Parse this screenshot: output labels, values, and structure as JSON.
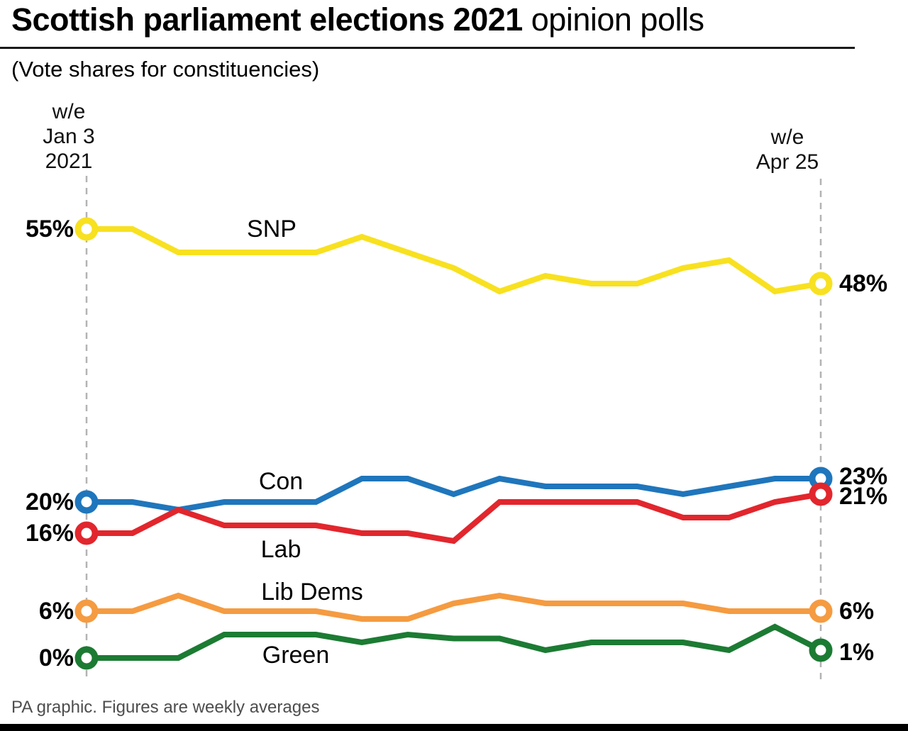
{
  "page": {
    "title_bold": "Scottish parliament elections 2021",
    "title_light": " opinion polls",
    "subtitle": "(Vote shares for constituencies)",
    "footer": "PA graphic. Figures are weekly averages"
  },
  "chart_data": {
    "type": "line",
    "title": "Scottish parliament elections 2021 opinion polls",
    "subtitle": "(Vote shares for constituencies)",
    "source_note": "PA graphic. Figures are weekly averages",
    "x_axis": {
      "description": "17 weekly poll averages from w/e Jan 3 2021 to w/e Apr 25",
      "start_label_lines": [
        "w/e",
        "Jan 3",
        "2021"
      ],
      "end_label_lines": [
        "w/e",
        "Apr 25"
      ],
      "gridlines": "dashed vertical line at first and last week only"
    },
    "y_axis": {
      "unit": "%",
      "range_shown": [
        0,
        55
      ],
      "tick_labels_left": [
        "55%",
        "20%",
        "16%",
        "6%",
        "0%"
      ],
      "tick_labels_right": [
        "48%",
        "23%",
        "21%",
        "6%",
        "1%"
      ]
    },
    "legend_position": "inline labels next to each line",
    "series": [
      {
        "name": "SNP",
        "color": "#F8E120",
        "start_label": "55%",
        "end_label": "48%",
        "values": [
          55,
          55,
          52,
          52,
          52,
          52,
          54,
          52,
          50,
          47,
          49,
          48,
          48,
          50,
          51,
          47,
          48
        ]
      },
      {
        "name": "Con",
        "color": "#1F76BC",
        "start_label": "20%",
        "end_label": "23%",
        "values": [
          20,
          20,
          19,
          20,
          20,
          20,
          23,
          23,
          21,
          23,
          22,
          22,
          22,
          21,
          22,
          23,
          23
        ]
      },
      {
        "name": "Lab",
        "color": "#E2262D",
        "start_label": "16%",
        "end_label": "21%",
        "values": [
          16,
          16,
          19,
          17,
          17,
          17,
          16,
          16,
          15,
          20,
          20,
          20,
          20,
          18,
          18,
          20,
          21
        ]
      },
      {
        "name": "Lib Dems",
        "color": "#F59B41",
        "start_label": "6%",
        "end_label": "6%",
        "values": [
          6,
          6,
          8,
          6,
          6,
          6,
          5,
          5,
          7,
          8,
          7,
          7,
          7,
          7,
          6,
          6,
          6
        ]
      },
      {
        "name": "Green",
        "color": "#1C7B33",
        "start_label": "0%",
        "end_label": "1%",
        "values": [
          0,
          0,
          0,
          3,
          3,
          3,
          2,
          3,
          2.5,
          2.5,
          1,
          2,
          2,
          2,
          1,
          4,
          1
        ]
      }
    ]
  }
}
